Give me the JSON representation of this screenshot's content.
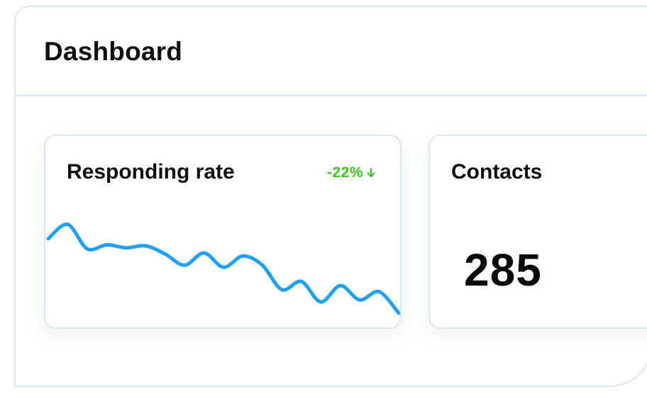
{
  "header": {
    "title": "Dashboard"
  },
  "cards": {
    "responding_rate": {
      "title": "Responding rate",
      "trend": "-22%",
      "trend_color": "#3bc41e",
      "trend_direction": "down",
      "line_color": "#21a0f2",
      "chart_data": {
        "type": "line",
        "y": [
          20,
          6,
          30,
          26,
          29,
          27,
          35,
          46,
          34,
          48,
          37,
          46,
          70,
          62,
          82,
          66,
          80,
          72,
          93
        ],
        "xlabel": "",
        "ylabel": ""
      }
    },
    "contacts": {
      "title": "Contacts",
      "value": "285"
    }
  }
}
